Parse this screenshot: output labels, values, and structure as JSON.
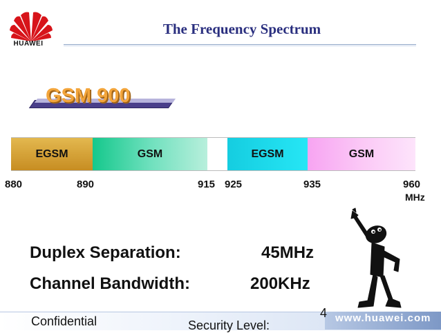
{
  "header": {
    "brand": "HUAWEI",
    "title": "The Frequency Spectrum"
  },
  "band": {
    "label": "GSM 900",
    "segments": [
      {
        "label": "EGSM",
        "from": 880,
        "to": 890,
        "color": "#d9a33a"
      },
      {
        "label": "GSM",
        "from": 890,
        "to": 915,
        "color": "#3fd4a4"
      },
      {
        "label": "",
        "from": 915,
        "to": 925,
        "color": "#ffffff"
      },
      {
        "label": "EGSM",
        "from": 925,
        "to": 935,
        "color": "#1fdcee"
      },
      {
        "label": "GSM",
        "from": 935,
        "to": 960,
        "color": "#f9b6f4"
      }
    ],
    "ticks": [
      "880",
      "890",
      "915",
      "925",
      "935",
      "960"
    ],
    "unit": "MHz"
  },
  "specs": [
    {
      "label": "Duplex Separation:",
      "value": "45MHz"
    },
    {
      "label": "Channel Bandwidth:",
      "value": "200KHz"
    }
  ],
  "footer": {
    "confidential": "Confidential",
    "security": "Security Level:",
    "page": "4",
    "url": "www.huawei.com"
  }
}
